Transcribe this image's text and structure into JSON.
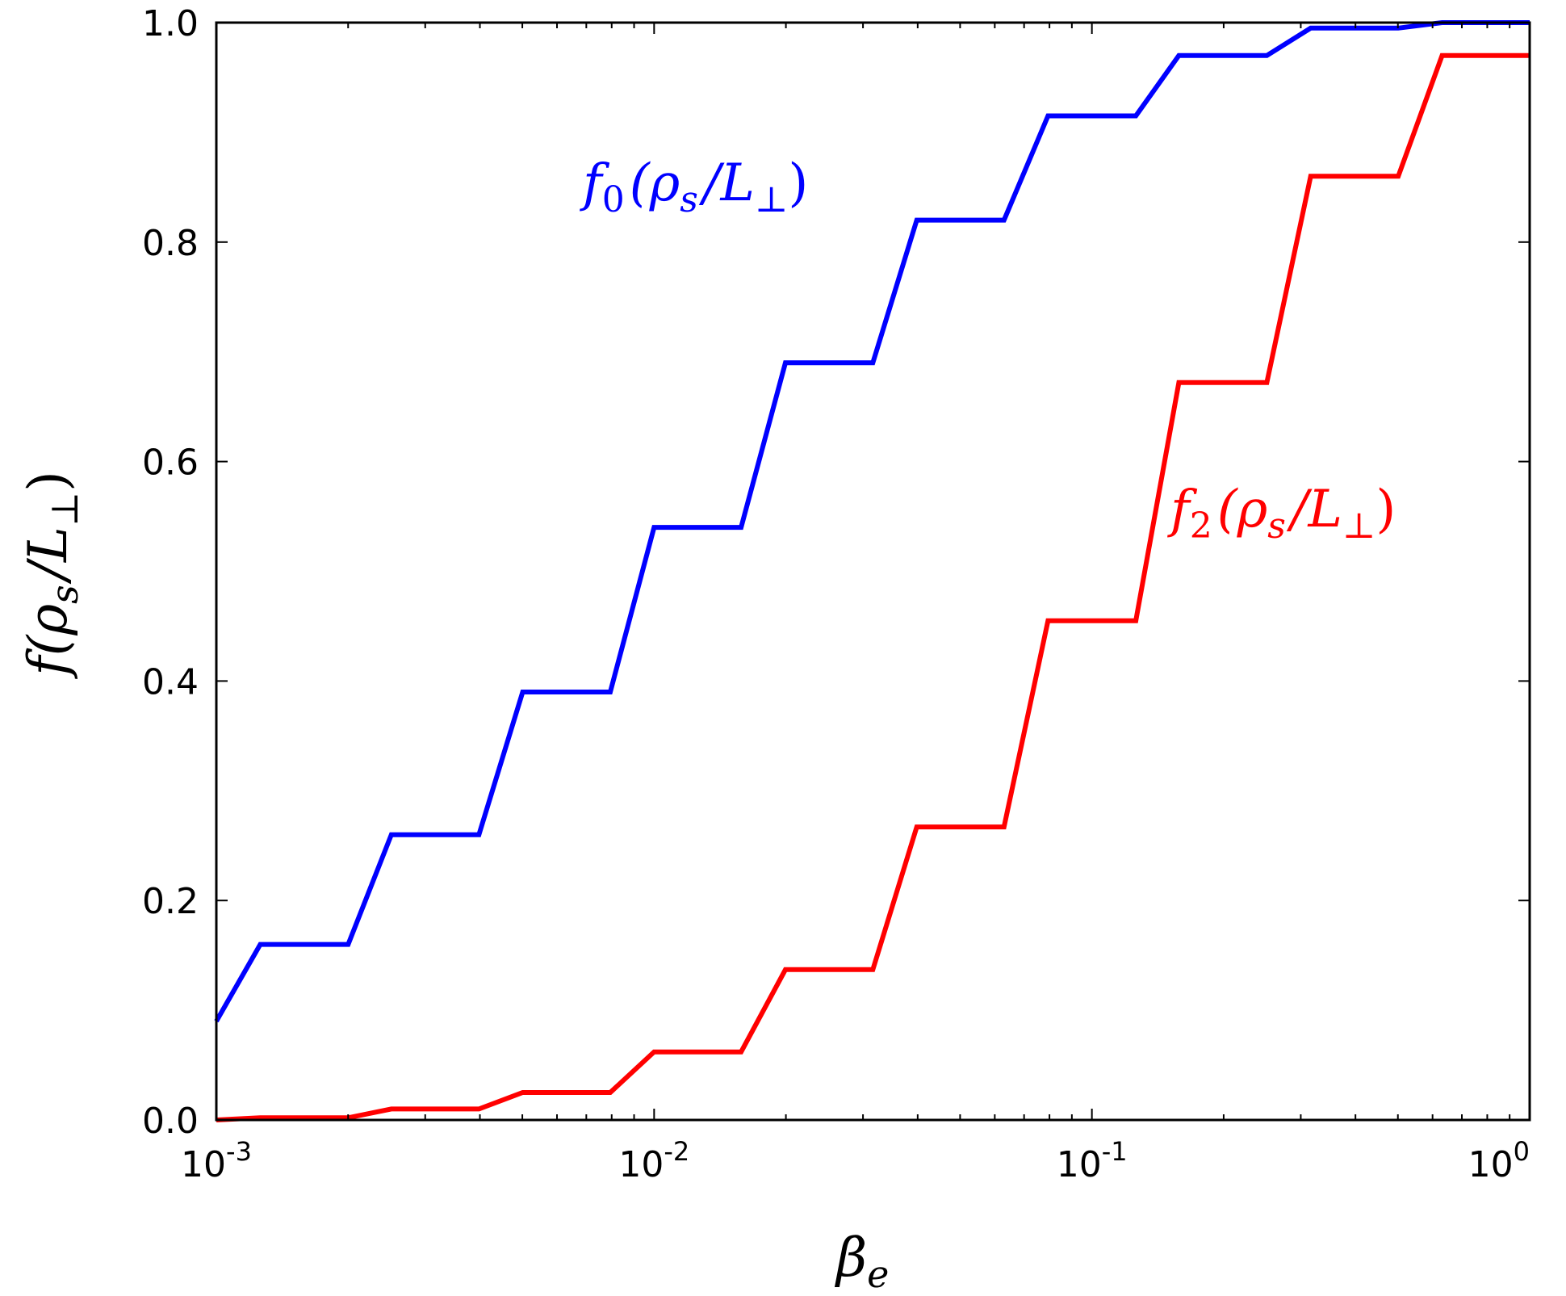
{
  "chart_data": {
    "type": "line",
    "xlabel": "β",
    "xlabel_sub": "e",
    "ylabel": "f(ρ",
    "ylabel_sub": "s",
    "ylabel_tail": "/L",
    "ylabel_sub2": "⊥",
    "ylabel_end": ")",
    "xscale": "log",
    "xlim": [
      0.001,
      1
    ],
    "ylim": [
      0,
      1
    ],
    "grid": false,
    "x_ticks": [
      {
        "value": 0.001,
        "base": "10",
        "exp": "-3"
      },
      {
        "value": 0.01,
        "base": "10",
        "exp": "-2"
      },
      {
        "value": 0.1,
        "base": "10",
        "exp": "-1"
      },
      {
        "value": 1,
        "base": "10",
        "exp": "0"
      }
    ],
    "y_ticks": [
      "0.0",
      "0.2",
      "0.4",
      "0.6",
      "0.8",
      "1.0"
    ],
    "series": [
      {
        "name": "f_0(ρ_s/L_⊥)",
        "label": {
          "main": "f",
          "sub": "0",
          "open": "(ρ",
          "sub2": "s",
          "mid": "/L",
          "sub3": "⊥",
          "close": ")"
        },
        "color": "#0000ff",
        "x": [
          0.001,
          0.00126,
          0.002,
          0.00251,
          0.00398,
          0.00501,
          0.00794,
          0.01,
          0.0158,
          0.01995,
          0.0316,
          0.0398,
          0.063,
          0.0794,
          0.126,
          0.158,
          0.251,
          0.316,
          0.501,
          0.631,
          1.0
        ],
        "y": [
          0.09,
          0.16,
          0.16,
          0.26,
          0.26,
          0.39,
          0.39,
          0.54,
          0.54,
          0.69,
          0.69,
          0.82,
          0.82,
          0.915,
          0.915,
          0.97,
          0.97,
          0.995,
          0.995,
          1.0,
          1.0
        ]
      },
      {
        "name": "f_2(ρ_s/L_⊥)",
        "label": {
          "main": "f",
          "sub": "2",
          "open": "(ρ",
          "sub2": "s",
          "mid": "/L",
          "sub3": "⊥",
          "close": ")"
        },
        "color": "#ff0000",
        "x": [
          0.001,
          0.00126,
          0.002,
          0.00251,
          0.00398,
          0.00501,
          0.00794,
          0.01,
          0.0158,
          0.01995,
          0.0316,
          0.0398,
          0.063,
          0.0794,
          0.126,
          0.158,
          0.251,
          0.316,
          0.501,
          0.631,
          1.0
        ],
        "y": [
          0.0,
          0.002,
          0.002,
          0.01,
          0.01,
          0.025,
          0.025,
          0.062,
          0.062,
          0.137,
          0.137,
          0.267,
          0.267,
          0.455,
          0.455,
          0.672,
          0.672,
          0.86,
          0.86,
          0.97,
          0.97
        ]
      }
    ]
  }
}
